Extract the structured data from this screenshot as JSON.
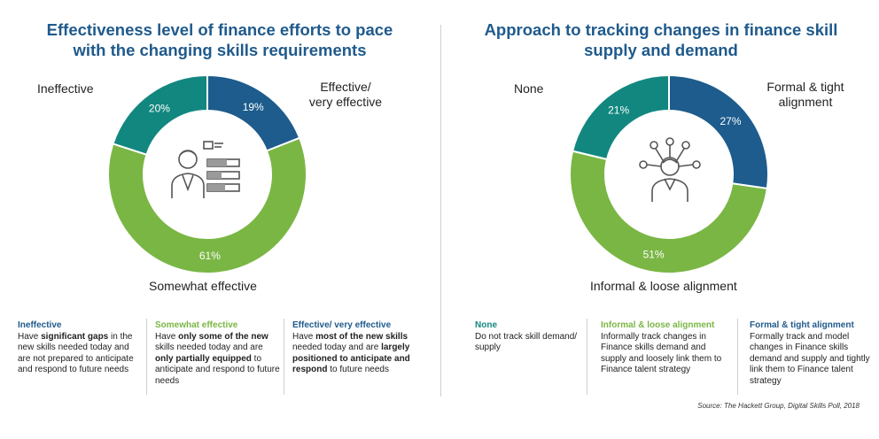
{
  "colors": {
    "dark_blue": "#1d5c8c",
    "teal": "#12877f",
    "green": "#7ab644",
    "title": "#1f5a8c"
  },
  "chart_data": [
    {
      "type": "pie",
      "title": "Effectiveness level of finance efforts to pace with the changing skills requirements",
      "categories": [
        "Effective/ very effective",
        "Somewhat effective",
        "Ineffective"
      ],
      "values": [
        19,
        61,
        20
      ],
      "value_labels": [
        "19%",
        "61%",
        "20%"
      ],
      "colors": [
        "#1d5c8c",
        "#7ab644",
        "#12877f"
      ],
      "center_icon": "person-skills-bars-icon"
    },
    {
      "type": "pie",
      "title": "Approach to tracking changes in finance skill supply and demand",
      "categories": [
        "Formal & tight alignment",
        "Informal & loose alignment",
        "None"
      ],
      "values": [
        27,
        51,
        21
      ],
      "value_labels": [
        "27%",
        "51%",
        "21%"
      ],
      "colors": [
        "#1d5c8c",
        "#7ab644",
        "#12877f"
      ],
      "center_icon": "person-network-icon"
    }
  ],
  "left": {
    "title_line1": "Effectiveness level of finance efforts to pace",
    "title_line2": "with the changing skills requirements",
    "label_ineffective": "Ineffective",
    "label_effective_line1": "Effective/",
    "label_effective_line2": "very effective",
    "label_somewhat": "Somewhat effective",
    "desc": [
      {
        "heading": "Ineffective",
        "color": "#1f5a8c",
        "parts": [
          [
            "Have ",
            false
          ],
          [
            "significant gaps",
            true
          ],
          [
            " in the new skills needed today and are not prepared to anticipate and respond to future needs",
            false
          ]
        ]
      },
      {
        "heading": "Somewhat effective",
        "color": "#7ab644",
        "parts": [
          [
            "Have ",
            false
          ],
          [
            "only some of the new",
            true
          ],
          [
            " skills needed today and are ",
            false
          ],
          [
            "only partially equipped",
            true
          ],
          [
            " to anticipate and respond to future needs",
            false
          ]
        ]
      },
      {
        "heading": "Effective/ very effective",
        "color": "#1f5a8c",
        "parts": [
          [
            "Have ",
            false
          ],
          [
            "most of the new skills",
            true
          ],
          [
            " needed today and are ",
            false
          ],
          [
            "largely positioned to anticipate and respond",
            true
          ],
          [
            " to future needs",
            false
          ]
        ]
      }
    ]
  },
  "right": {
    "title_line1": "Approach to tracking changes in finance skill",
    "title_line2": "supply and demand",
    "label_none": "None",
    "label_formal_line1": "Formal & tight",
    "label_formal_line2": "alignment",
    "label_informal": "Informal & loose alignment",
    "desc": [
      {
        "heading": "None",
        "color": "#12877f",
        "parts": [
          [
            "Do not track skill demand/ supply",
            false
          ]
        ]
      },
      {
        "heading": "Informal & loose alignment",
        "color": "#7ab644",
        "parts": [
          [
            "Informally track changes in Finance skills demand and supply and loosely link them to Finance talent strategy",
            false
          ]
        ]
      },
      {
        "heading": "Formal & tight alignment",
        "color": "#1f5a8c",
        "parts": [
          [
            "Formally track and model changes in Finance skills demand and supply and tightly link them to Finance talent strategy",
            false
          ]
        ]
      }
    ]
  },
  "source": "Source: The Hackett Group, Digital Skills Poll, 2018"
}
